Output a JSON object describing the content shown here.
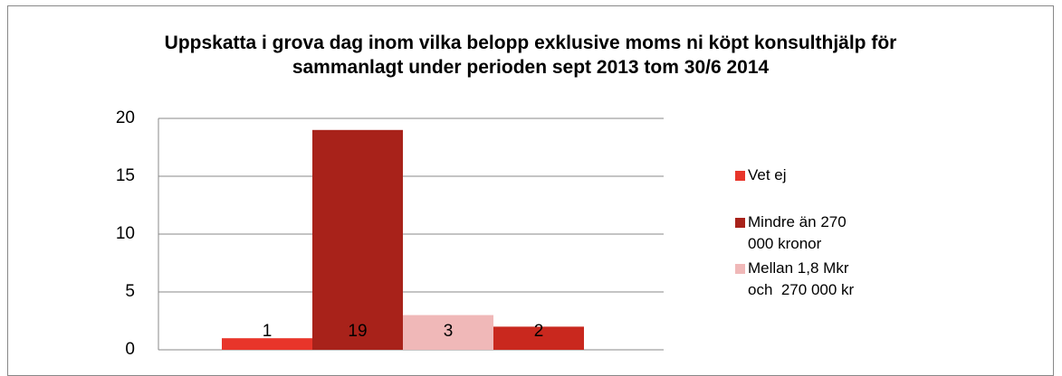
{
  "chart_data": {
    "type": "bar",
    "title": "Uppskatta i grova dag inom vilka belopp exklusive moms ni köpt konsulthjälp för sammanlagt under perioden sept 2013 tom 30/6 2014",
    "series": [
      {
        "name": "Vet ej",
        "color": "#e8352a",
        "values": [
          1
        ]
      },
      {
        "name": "Mindre än 270 000 kronor",
        "color": "#a8221a",
        "values": [
          19
        ]
      },
      {
        "name": "Mellan 1,8 Mkr och  270 000 kr",
        "color": "#f0b8b8",
        "values": [
          3
        ]
      },
      {
        "color": "#c9281e",
        "values": [
          2
        ]
      }
    ],
    "ylim": [
      0,
      20
    ],
    "yticks": [
      0,
      5,
      10,
      15,
      20
    ],
    "grid": true,
    "legend": "right"
  }
}
